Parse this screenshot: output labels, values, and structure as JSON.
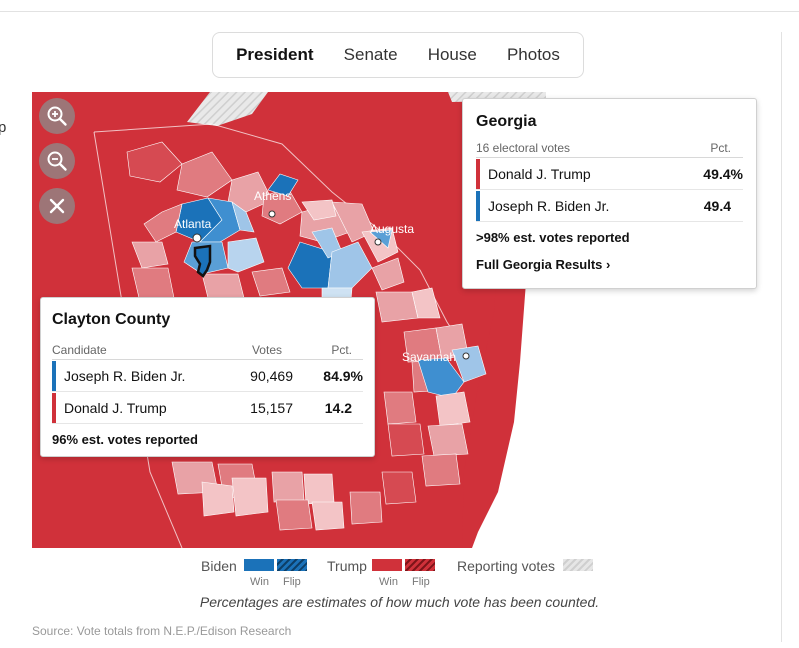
{
  "edge_text": "p",
  "tabs": [
    {
      "label": "President",
      "active": true
    },
    {
      "label": "Senate"
    },
    {
      "label": "House"
    },
    {
      "label": "Photos"
    }
  ],
  "map": {
    "cities": [
      "Athens",
      "Atlanta",
      "Augusta",
      "Savannah"
    ],
    "colors": {
      "trump_win": "#d0313a",
      "biden_win": "#1b72b9",
      "reporting": "#dedede"
    }
  },
  "state_panel": {
    "title": "Georgia",
    "electoral": "16 electoral votes",
    "pct_header": "Pct.",
    "rows": [
      {
        "name": "Donald J. Trump",
        "pct": "49.4%",
        "color": "#d0313a"
      },
      {
        "name": "Joseph R. Biden Jr.",
        "pct": "49.4",
        "color": "#1b72b9"
      }
    ],
    "reported": ">98% est. votes reported",
    "link": "Full Georgia Results ›"
  },
  "county_panel": {
    "title": "Clayton County",
    "headers": {
      "candidate": "Candidate",
      "votes": "Votes",
      "pct": "Pct."
    },
    "rows": [
      {
        "name": "Joseph R. Biden Jr.",
        "votes": "90,469",
        "pct": "84.9%",
        "color": "#1b72b9"
      },
      {
        "name": "Donald J. Trump",
        "votes": "15,157",
        "pct": "14.2",
        "color": "#d0313a"
      }
    ],
    "reported": "96% est. votes reported"
  },
  "legend": {
    "biden": "Biden",
    "trump": "Trump",
    "win": "Win",
    "flip": "Flip",
    "reporting": "Reporting votes"
  },
  "caption": "Percentages are estimates of how much vote has been counted.",
  "source": "Source: Vote totals from N.E.P./Edison Research"
}
